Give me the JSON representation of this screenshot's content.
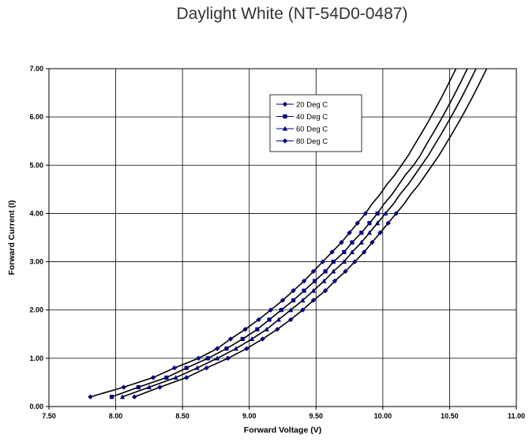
{
  "chart_data": {
    "type": "line",
    "title": "Daylight White (NT-54D0-0487)",
    "xlabel": "Forward Voltage (V)",
    "ylabel": "Forward Current (I)",
    "xlim": [
      7.5,
      11.0
    ],
    "ylim": [
      0.0,
      7.0
    ],
    "x_ticks": [
      "7.50",
      "8.00",
      "8.50",
      "9.00",
      "9.50",
      "10.00",
      "10.50",
      "11.00"
    ],
    "y_ticks": [
      "0.00",
      "1.00",
      "2.00",
      "3.00",
      "4.00",
      "5.00",
      "6.00",
      "7.00"
    ],
    "grid": true,
    "legend_position": "top-center",
    "series": [
      {
        "name": "20 Deg C",
        "marker": "diamond",
        "color": "#000080",
        "x": [
          7.81,
          8.06,
          8.28,
          8.44,
          8.62,
          8.76,
          8.86,
          8.97,
          9.07,
          9.16,
          9.25,
          9.33,
          9.41,
          9.48,
          9.55,
          9.62,
          9.69,
          9.75,
          9.81,
          9.87,
          9.92,
          9.98,
          10.03,
          10.09,
          10.14,
          10.19
        ],
        "y": [
          0.2,
          0.4,
          0.6,
          0.8,
          1.0,
          1.2,
          1.4,
          1.6,
          1.8,
          2.0,
          2.2,
          2.4,
          2.6,
          2.8,
          3.0,
          3.2,
          3.4,
          3.6,
          3.8,
          4.0,
          4.2,
          4.4,
          4.6,
          4.8,
          5.0,
          5.2
        ]
      },
      {
        "name": "40 Deg C",
        "marker": "square",
        "color": "#000080",
        "x": [
          7.97,
          8.17,
          8.38,
          8.53,
          8.69,
          8.83,
          8.95,
          9.06,
          9.15,
          9.24,
          9.33,
          9.41,
          9.49,
          9.57,
          9.63,
          9.71,
          9.77,
          9.84,
          9.9,
          9.96,
          10.01,
          10.07,
          10.12,
          10.17,
          10.23,
          10.28
        ],
        "y": [
          0.2,
          0.4,
          0.6,
          0.8,
          1.0,
          1.2,
          1.4,
          1.6,
          1.8,
          2.0,
          2.2,
          2.4,
          2.6,
          2.8,
          3.0,
          3.2,
          3.4,
          3.6,
          3.8,
          4.0,
          4.2,
          4.4,
          4.6,
          4.8,
          5.0,
          5.2
        ]
      },
      {
        "name": "60 Deg C",
        "marker": "triangle",
        "color": "#000080",
        "x": [
          8.05,
          8.25,
          8.45,
          8.61,
          8.76,
          8.9,
          9.02,
          9.13,
          9.22,
          9.31,
          9.4,
          9.48,
          9.56,
          9.63,
          9.71,
          9.77,
          9.84,
          9.9,
          9.96,
          10.02,
          10.08,
          10.13,
          10.19,
          10.24,
          10.29,
          10.34
        ],
        "y": [
          0.2,
          0.4,
          0.6,
          0.8,
          1.0,
          1.2,
          1.4,
          1.6,
          1.8,
          2.0,
          2.2,
          2.4,
          2.6,
          2.8,
          3.0,
          3.2,
          3.4,
          3.6,
          3.8,
          4.0,
          4.2,
          4.4,
          4.6,
          4.8,
          5.0,
          5.2
        ]
      },
      {
        "name": "80 Deg C",
        "marker": "diamond",
        "color": "#000080",
        "x": [
          8.14,
          8.33,
          8.53,
          8.68,
          8.84,
          8.98,
          9.1,
          9.21,
          9.31,
          9.4,
          9.48,
          9.57,
          9.64,
          9.72,
          9.79,
          9.86,
          9.92,
          9.98,
          10.04,
          10.1,
          10.16,
          10.21,
          10.27,
          10.32,
          10.37,
          10.42
        ],
        "y": [
          0.2,
          0.4,
          0.6,
          0.8,
          1.0,
          1.2,
          1.4,
          1.6,
          1.8,
          2.0,
          2.2,
          2.4,
          2.6,
          2.8,
          3.0,
          3.2,
          3.4,
          3.6,
          3.8,
          4.0,
          4.2,
          4.4,
          4.6,
          4.8,
          5.0,
          5.2
        ]
      }
    ]
  }
}
